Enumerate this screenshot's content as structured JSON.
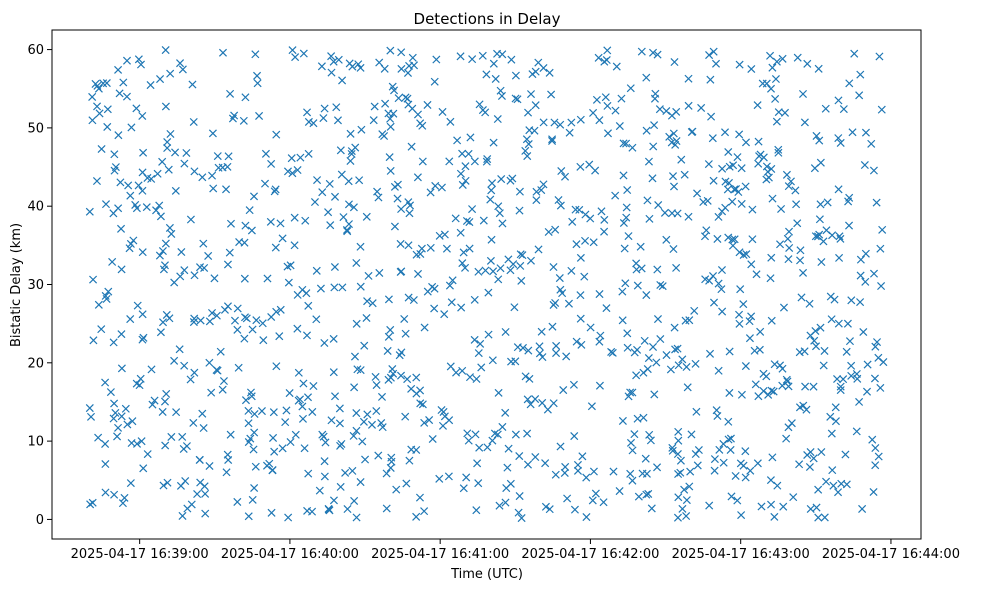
{
  "chart_data": {
    "type": "scatter",
    "title": "Detections in Delay",
    "xlabel": "Time (UTC)",
    "ylabel": "Bistatic Delay (km)",
    "marker": "x",
    "series_color": "#1f77b4",
    "x_range": [
      "2025-04-17 16:38:40",
      "2025-04-17 16:43:57"
    ],
    "xlim": [
      "2025-04-17 16:38:25",
      "2025-04-17 16:44:12"
    ],
    "ylim": [
      -2.5,
      62.5
    ],
    "x_ticks": [
      "2025-04-17 16:39:00",
      "2025-04-17 16:40:00",
      "2025-04-17 16:41:00",
      "2025-04-17 16:42:00",
      "2025-04-17 16:43:00",
      "2025-04-17 16:44:00"
    ],
    "y_ticks": [
      "0",
      "10",
      "20",
      "30",
      "40",
      "50",
      "60"
    ],
    "y_range": [
      0,
      60
    ],
    "approx_point_count": 1200,
    "note": "Approximately 1200 detections scattered roughly uniformly over the time window and 0–60 km delay range; individual points are not labeled."
  }
}
